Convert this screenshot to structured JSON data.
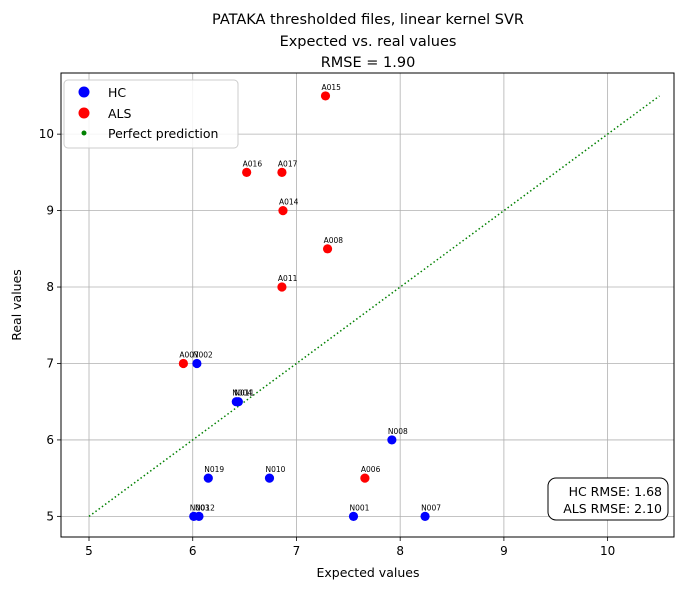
{
  "chart_data": {
    "type": "scatter",
    "title": [
      "PATAKA thresholded files, linear kernel SVR",
      "Expected vs. real values",
      "RMSE = 1.90"
    ],
    "xlabel": "Expected values",
    "ylabel": "Real values",
    "xlim": [
      4.73,
      10.64
    ],
    "ylim": [
      4.73,
      10.8
    ],
    "xticks": [
      5,
      6,
      7,
      8,
      9,
      10
    ],
    "yticks": [
      5,
      6,
      7,
      8,
      9,
      10
    ],
    "grid": true,
    "legend": {
      "position": "top-left",
      "entries": [
        {
          "label": "HC",
          "color": "#0000ff",
          "marker": "circle"
        },
        {
          "label": "ALS",
          "color": "#ff0000",
          "marker": "circle"
        },
        {
          "label": "Perfect prediction",
          "color": "#008000",
          "marker": "small-dot"
        }
      ]
    },
    "series": [
      {
        "name": "HC",
        "color": "#0000ff",
        "points": [
          {
            "label": "N002",
            "x": 6.04,
            "y": 7.0
          },
          {
            "label": "N004",
            "x": 6.42,
            "y": 6.5
          },
          {
            "label": "N011",
            "x": 6.44,
            "y": 6.5
          },
          {
            "label": "N008",
            "x": 7.92,
            "y": 6.0
          },
          {
            "label": "N019",
            "x": 6.15,
            "y": 5.5
          },
          {
            "label": "N010",
            "x": 6.74,
            "y": 5.5
          },
          {
            "label": "N003",
            "x": 6.01,
            "y": 5.0
          },
          {
            "label": "N012",
            "x": 6.06,
            "y": 5.0
          },
          {
            "label": "N001",
            "x": 7.55,
            "y": 5.0
          },
          {
            "label": "N007",
            "x": 8.24,
            "y": 5.0
          }
        ]
      },
      {
        "name": "ALS",
        "color": "#ff0000",
        "points": [
          {
            "label": "A015",
            "x": 7.28,
            "y": 10.5
          },
          {
            "label": "A016",
            "x": 6.52,
            "y": 9.5
          },
          {
            "label": "A017",
            "x": 6.86,
            "y": 9.5
          },
          {
            "label": "A014",
            "x": 6.87,
            "y": 9.0
          },
          {
            "label": "A008",
            "x": 7.3,
            "y": 8.5
          },
          {
            "label": "A011",
            "x": 6.86,
            "y": 8.0
          },
          {
            "label": "A007",
            "x": 5.91,
            "y": 7.0
          },
          {
            "label": "A006",
            "x": 7.66,
            "y": 5.5
          }
        ]
      },
      {
        "name": "Perfect prediction",
        "type": "line",
        "style": "dotted",
        "color": "#008000",
        "x": [
          5.0,
          10.5
        ],
        "y": [
          5.0,
          10.5
        ]
      }
    ],
    "annotation": {
      "lines": [
        "HC RMSE: 1.68",
        "ALS RMSE: 2.10"
      ],
      "position": "bottom-right"
    }
  }
}
